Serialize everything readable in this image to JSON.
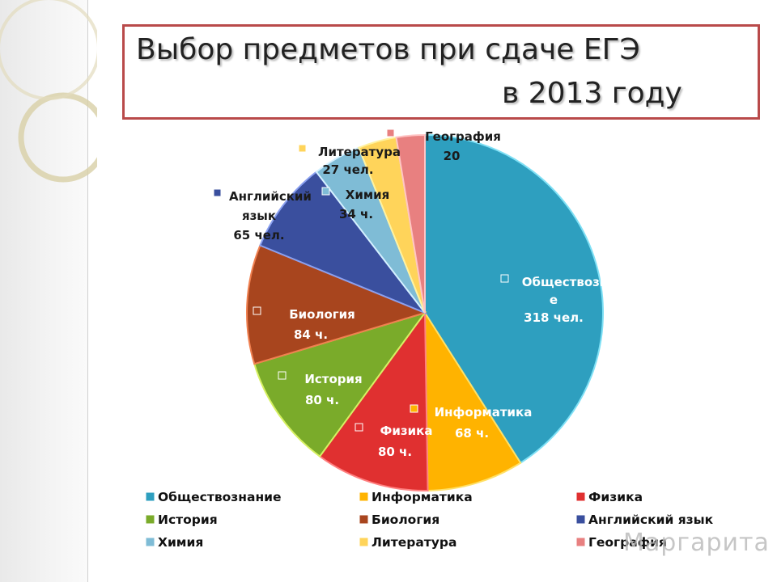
{
  "title": {
    "line1": "Выбор предметов при сдаче ЕГЭ",
    "line2": "в 2013 году"
  },
  "chart_data": {
    "type": "pie",
    "slices": [
      {
        "name": "Обществознание",
        "value": 318,
        "label_lines": [
          "Обществозн",
          "е",
          "318 чел."
        ],
        "color": "#2e9fbf",
        "stroke": "#7fe0f5",
        "label_color": "#ffffff"
      },
      {
        "name": "Информатика",
        "value": 68,
        "label_lines": [
          "Информатика",
          "68 ч."
        ],
        "color": "#ffb300",
        "stroke": "#ffe066",
        "label_color": "#ffffff"
      },
      {
        "name": "Физика",
        "value": 80,
        "label_lines": [
          "Физика",
          "80 ч."
        ],
        "color": "#e03030",
        "stroke": "#ff8080",
        "label_color": "#ffffff"
      },
      {
        "name": "История",
        "value": 80,
        "label_lines": [
          "История",
          "80 ч."
        ],
        "color": "#7aab2a",
        "stroke": "#d6f062",
        "label_color": "#ffffff"
      },
      {
        "name": "Биология",
        "value": 84,
        "label_lines": [
          "Биология",
          "84 ч."
        ],
        "color": "#a8451e",
        "stroke": "#f08050",
        "label_color": "#ffffff"
      },
      {
        "name": "Английский язык",
        "value": 65,
        "label_lines": [
          "Английский",
          "язык",
          "65 чел."
        ],
        "color": "#3a4f9e",
        "stroke": "#8aa0f0",
        "label_color": "#1a1a1a"
      },
      {
        "name": "Химия",
        "value": 34,
        "label_lines": [
          "Химия",
          "34 ч."
        ],
        "color": "#7fbcd6",
        "stroke": "#d4f0ff",
        "label_color": "#1a1a1a"
      },
      {
        "name": "Литература",
        "value": 27,
        "label_lines": [
          "Литература",
          "27 чел."
        ],
        "color": "#ffd45a",
        "stroke": "#fff2a0",
        "label_color": "#1a1a1a"
      },
      {
        "name": "География",
        "value": 20,
        "label_lines": [
          "География",
          "20"
        ],
        "color": "#e88080",
        "stroke": "#ffc4c4",
        "label_color": "#1a1a1a"
      }
    ],
    "legend": {
      "position": "bottom",
      "columns": [
        [
          "Обществознание",
          "История",
          "Химия"
        ],
        [
          "Информатика",
          "Биология",
          "Литература"
        ],
        [
          "Физика",
          "Английский язык",
          "География"
        ]
      ]
    }
  },
  "watermark": "Маргарита"
}
